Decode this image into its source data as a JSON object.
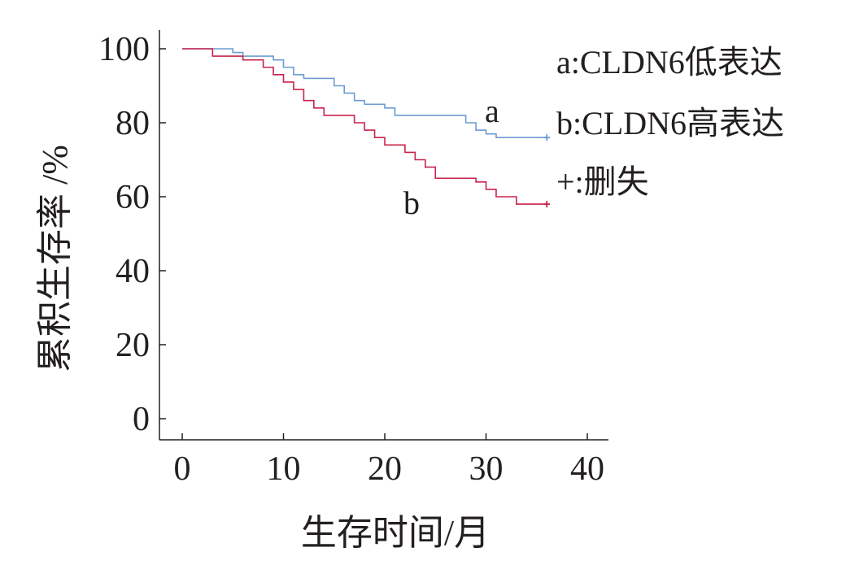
{
  "chart_data": {
    "type": "line",
    "step": true,
    "xlabel": "生存时间/月",
    "ylabel": "累积生存率 /%",
    "xlim": [
      0,
      40
    ],
    "ylim": [
      0,
      100
    ],
    "xticks": [
      "0",
      "10",
      "20",
      "30",
      "40"
    ],
    "yticks": [
      "0",
      "20",
      "40",
      "60",
      "80",
      "100"
    ],
    "grid": false,
    "legend_position": "top-right",
    "legend": [
      "a:CLDN6低表达",
      "b:CLDN6高表达",
      "+:删失"
    ],
    "series": [
      {
        "name": "a",
        "color": "#6b9bd2",
        "censor_mark": "+",
        "x": [
          0,
          5,
          6,
          8,
          9,
          10,
          11,
          12,
          15,
          16,
          17,
          18,
          20,
          21,
          28,
          29,
          30,
          31,
          36
        ],
        "y": [
          100,
          99,
          98,
          98,
          97,
          95,
          93,
          92,
          90,
          88,
          86,
          85,
          84,
          82,
          80,
          78,
          77,
          76,
          76
        ]
      },
      {
        "name": "b",
        "color": "#c8234b",
        "censor_mark": "+",
        "x": [
          0,
          3,
          6,
          8,
          9,
          10,
          11,
          12,
          13,
          14,
          17,
          18,
          19,
          20,
          22,
          23,
          24,
          25,
          29,
          30,
          31,
          33,
          36
        ],
        "y": [
          100,
          98,
          97,
          95,
          93,
          91,
          89,
          86,
          84,
          82,
          80,
          78,
          76,
          74,
          72,
          70,
          68,
          65,
          64,
          62,
          60,
          58,
          58
        ]
      }
    ]
  }
}
